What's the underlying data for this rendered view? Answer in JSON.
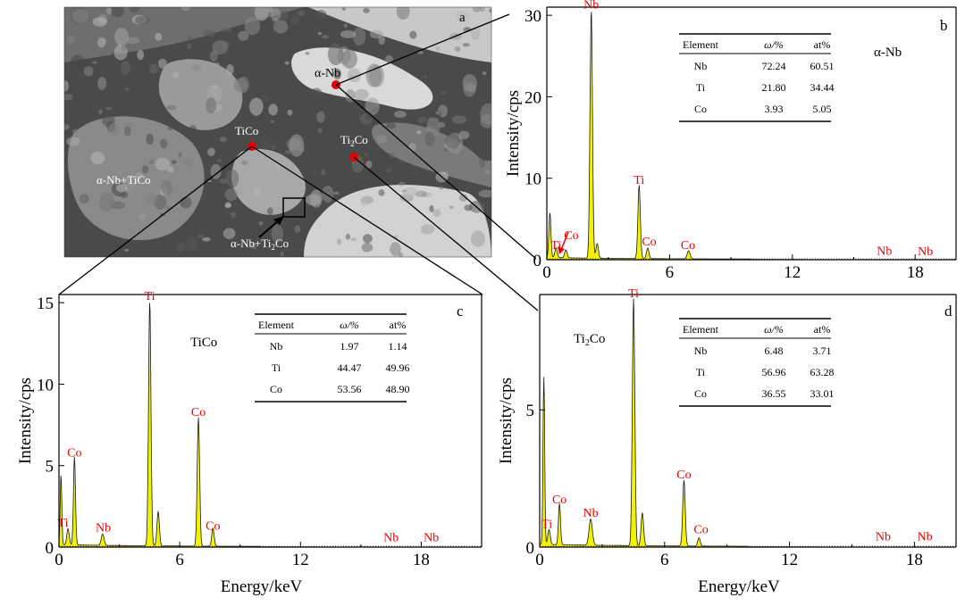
{
  "micrograph": {
    "panel_label": "a",
    "labels": {
      "alpha_nb": "α-Nb",
      "tico": "TiCo",
      "ti2co_main": "Ti",
      "ti2co_sub": "2",
      "ti2co_tail": "Co",
      "eutectic_tico": "α-Nb+TiCo",
      "eutectic_ti2co_main": "α-Nb+Ti",
      "eutectic_ti2co_sub": "2",
      "eutectic_ti2co_tail": "Co"
    },
    "marker_color": "#e60000"
  },
  "colors": {
    "spectrum_fill": "#f2f200",
    "spectrum_line": "#1a1a1a",
    "peak_label": "#e60000",
    "axis": "#000000"
  },
  "chart_data": [
    {
      "id": "b",
      "type": "area",
      "panel_label": "b",
      "phase": {
        "main": "α-Nb",
        "sub": "",
        "tail": ""
      },
      "xlabel": "",
      "ylabel": "Intensity/cps",
      "xlim": [
        0,
        20
      ],
      "ylim": [
        0,
        31
      ],
      "xticks": [
        0,
        6,
        12,
        18
      ],
      "yticks": [
        0,
        10,
        20,
        30
      ],
      "peaks": [
        {
          "x": 0.15,
          "y": 5.5,
          "w": 0.05
        },
        {
          "x": 0.45,
          "y": 1.2,
          "w": 0.06
        },
        {
          "x": 0.93,
          "y": 1.0,
          "w": 0.06
        },
        {
          "x": 2.17,
          "y": 30.5,
          "w": 0.06
        },
        {
          "x": 2.46,
          "y": 1.8,
          "w": 0.06
        },
        {
          "x": 4.51,
          "y": 9.0,
          "w": 0.06
        },
        {
          "x": 4.93,
          "y": 1.3,
          "w": 0.06
        },
        {
          "x": 6.93,
          "y": 1.0,
          "w": 0.07
        }
      ],
      "peak_labels": [
        {
          "text": "Nb",
          "x": 2.17,
          "y": 30.5
        },
        {
          "text": "Ti",
          "x": 4.51,
          "y": 9.0
        },
        {
          "text": "Co",
          "x": 5.0,
          "y": 1.4
        },
        {
          "text": "Co",
          "x": 6.9,
          "y": 1.0
        },
        {
          "text": "Nb",
          "x": 16.5,
          "y": 0.3
        },
        {
          "text": "Nb",
          "x": 18.5,
          "y": 0.2
        },
        {
          "text": "Ti",
          "x": 0.45,
          "y": 1.0
        },
        {
          "text": "Co",
          "x": 1.2,
          "y": 2.2
        }
      ],
      "table": {
        "headers": [
          "Element",
          "ω/%",
          "at%"
        ],
        "rows": [
          [
            "Nb",
            "72.24",
            "60.51"
          ],
          [
            "Ti",
            "21.80",
            "34.44"
          ],
          [
            "Co",
            "3.93",
            "5.05"
          ]
        ]
      }
    },
    {
      "id": "c",
      "type": "area",
      "panel_label": "c",
      "phase": {
        "main": "TiCo",
        "sub": "",
        "tail": ""
      },
      "xlabel": "Energy/keV",
      "ylabel": "Intensity/cps",
      "xlim": [
        0,
        21
      ],
      "ylim": [
        0,
        15.5
      ],
      "xticks": [
        0,
        6,
        12,
        18
      ],
      "yticks": [
        0,
        5,
        10,
        15
      ],
      "peaks": [
        {
          "x": 0.1,
          "y": 4.3,
          "w": 0.04
        },
        {
          "x": 0.45,
          "y": 1.0,
          "w": 0.06
        },
        {
          "x": 0.77,
          "y": 5.4,
          "w": 0.05
        },
        {
          "x": 2.17,
          "y": 0.7,
          "w": 0.07
        },
        {
          "x": 4.51,
          "y": 15.0,
          "w": 0.06
        },
        {
          "x": 4.93,
          "y": 2.1,
          "w": 0.06
        },
        {
          "x": 6.93,
          "y": 7.9,
          "w": 0.06
        },
        {
          "x": 7.65,
          "y": 1.1,
          "w": 0.06
        }
      ],
      "peak_labels": [
        {
          "text": "Ti",
          "x": 4.51,
          "y": 15.0
        },
        {
          "text": "Co",
          "x": 6.93,
          "y": 7.9
        },
        {
          "text": "Co",
          "x": 0.77,
          "y": 5.4
        },
        {
          "text": "Ti",
          "x": 0.2,
          "y": 1.1
        },
        {
          "text": "Nb",
          "x": 2.2,
          "y": 0.8
        },
        {
          "text": "Co",
          "x": 7.65,
          "y": 0.9
        },
        {
          "text": "Nb",
          "x": 16.5,
          "y": 0.2
        },
        {
          "text": "Nb",
          "x": 18.5,
          "y": 0.2
        }
      ],
      "table": {
        "headers": [
          "Element",
          "ω/%",
          "at%"
        ],
        "rows": [
          [
            "Nb",
            "1.97",
            "1.14"
          ],
          [
            "Ti",
            "44.47",
            "49.96"
          ],
          [
            "Co",
            "53.56",
            "48.90"
          ]
        ]
      }
    },
    {
      "id": "d",
      "type": "area",
      "panel_label": "d",
      "phase": {
        "main": "Ti",
        "sub": "2",
        "tail": "Co"
      },
      "xlabel": "Energy/keV",
      "ylabel": "Intensity/cps",
      "xlim": [
        0,
        20
      ],
      "ylim": [
        0,
        9.2
      ],
      "xticks": [
        0,
        6,
        12,
        18
      ],
      "yticks": [
        0,
        5
      ],
      "peaks": [
        {
          "x": 0.2,
          "y": 6.1,
          "w": 0.04
        },
        {
          "x": 0.45,
          "y": 0.55,
          "w": 0.06
        },
        {
          "x": 0.95,
          "y": 1.5,
          "w": 0.05
        },
        {
          "x": 2.45,
          "y": 0.95,
          "w": 0.08
        },
        {
          "x": 4.51,
          "y": 9.0,
          "w": 0.06
        },
        {
          "x": 4.93,
          "y": 1.2,
          "w": 0.06
        },
        {
          "x": 6.93,
          "y": 2.4,
          "w": 0.06
        },
        {
          "x": 7.65,
          "y": 0.3,
          "w": 0.06
        }
      ],
      "peak_labels": [
        {
          "text": "Ti",
          "x": 4.51,
          "y": 9.0
        },
        {
          "text": "Co",
          "x": 6.93,
          "y": 2.4
        },
        {
          "text": "Co",
          "x": 0.95,
          "y": 1.5
        },
        {
          "text": "Ti",
          "x": 0.35,
          "y": 0.6
        },
        {
          "text": "Nb",
          "x": 2.45,
          "y": 1.0
        },
        {
          "text": "Co",
          "x": 7.75,
          "y": 0.4
        },
        {
          "text": "Nb",
          "x": 16.5,
          "y": 0.15
        },
        {
          "text": "Nb",
          "x": 18.5,
          "y": 0.15
        }
      ],
      "table": {
        "headers": [
          "Element",
          "ω/%",
          "at%"
        ],
        "rows": [
          [
            "Nb",
            "6.48",
            "3.71"
          ],
          [
            "Ti",
            "56.96",
            "63.28"
          ],
          [
            "Co",
            "36.55",
            "33.01"
          ]
        ]
      }
    }
  ]
}
